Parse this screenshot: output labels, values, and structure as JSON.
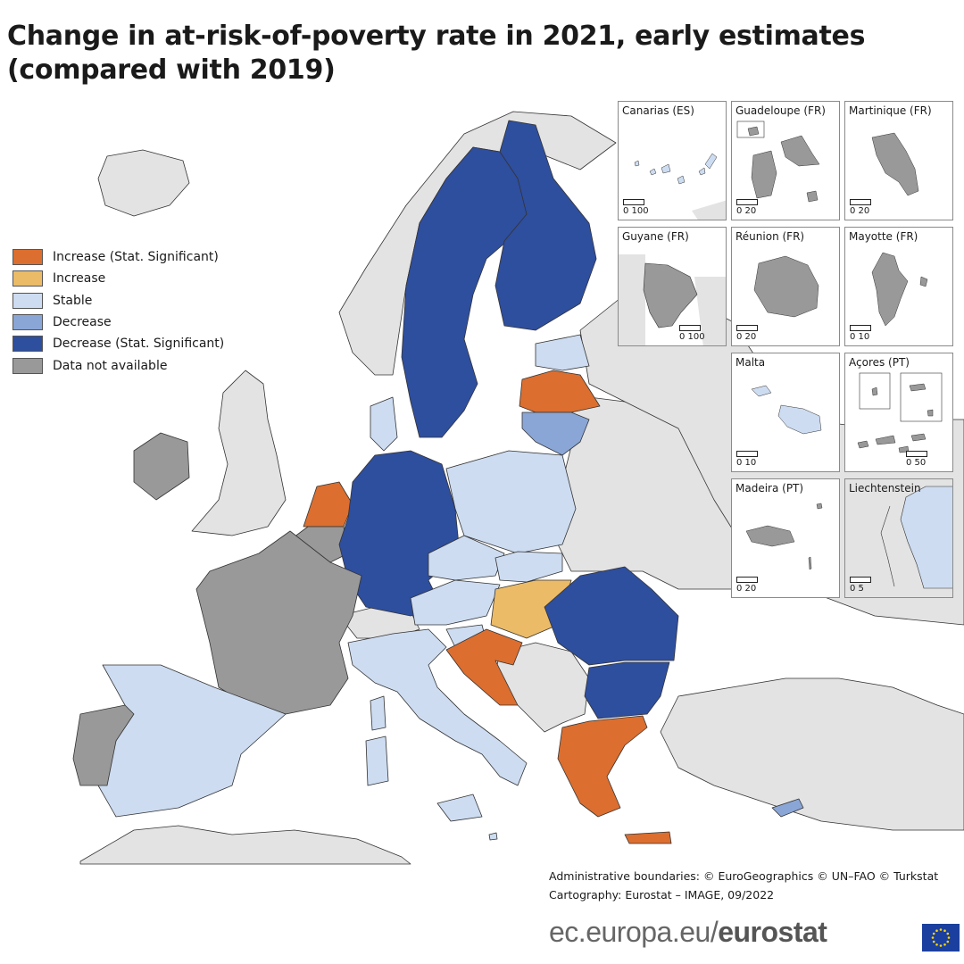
{
  "title": {
    "line1": "Change in at-risk-of-poverty rate in 2021, early estimates",
    "line2": "(compared with 2019)"
  },
  "colors": {
    "increase_sig": "#dc6e2f",
    "increase": "#ebbb68",
    "stable": "#cddcf1",
    "decrease": "#8aa6d6",
    "decrease_sig": "#2e4e9e",
    "not_available": "#999999",
    "non_eu": "#e3e3e3",
    "sea": "#ffffff"
  },
  "legend": [
    {
      "label": "Increase (Stat. Significant)",
      "color": "#dc6e2f"
    },
    {
      "label": "Increase",
      "color": "#ebbb68"
    },
    {
      "label": "Stable",
      "color": "#cddcf1"
    },
    {
      "label": "Decrease",
      "color": "#8aa6d6"
    },
    {
      "label": "Decrease (Stat. Significant)",
      "color": "#2e4e9e"
    },
    {
      "label": "Data not available",
      "color": "#999999"
    }
  ],
  "insets": [
    {
      "name": "Canarias (ES)",
      "scale": "0  100"
    },
    {
      "name": "Guadeloupe (FR)",
      "scale": "0    20"
    },
    {
      "name": "Martinique (FR)",
      "scale": "0    20"
    },
    {
      "name": "Guyane (FR)",
      "scale": "0  100"
    },
    {
      "name": "Réunion (FR)",
      "scale": "0    20"
    },
    {
      "name": "Mayotte (FR)",
      "scale": "0    10"
    },
    {
      "name": "Malta",
      "scale": "0    10"
    },
    {
      "name": "Açores (PT)",
      "scale": "0    50"
    },
    {
      "name": "Madeira (PT)",
      "scale": "0    20"
    },
    {
      "name": "Liechtenstein",
      "scale": "0    5"
    }
  ],
  "source": {
    "line1": "Administrative boundaries: © EuroGeographics © UN–FAO © Turkstat",
    "line2": "Cartography: Eurostat – IMAGE, 09/2022"
  },
  "brand": {
    "prefix": "ec.europa.eu/",
    "name": "eurostat"
  }
}
